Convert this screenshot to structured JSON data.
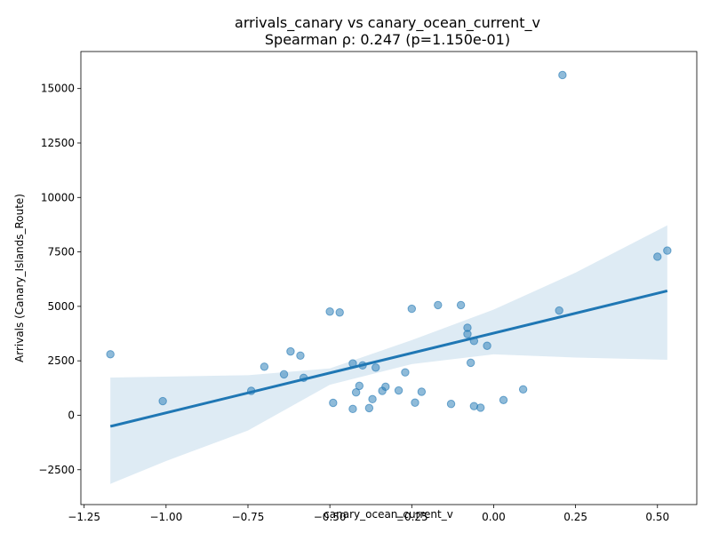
{
  "chart_data": {
    "type": "scatter",
    "title": "arrivals_canary vs canary_ocean_current_v",
    "subtitle": "Spearman ρ: 0.247 (p=1.150e-01)",
    "xlabel": "canary_ocean_current_v",
    "ylabel": "Arrivals (Canary_Islands_Route)",
    "xlim": [
      -1.26,
      0.62
    ],
    "ylim": [
      -4100,
      16700
    ],
    "xticks": [
      -1.25,
      -1.0,
      -0.75,
      -0.5,
      -0.25,
      0.0,
      0.25,
      0.5
    ],
    "xtick_labels": [
      "−1.25",
      "−1.00",
      "−0.75",
      "−0.50",
      "−0.25",
      "0.00",
      "0.25",
      "0.50"
    ],
    "yticks": [
      -2500,
      0,
      2500,
      5000,
      7500,
      10000,
      12500,
      15000
    ],
    "ytick_labels": [
      "−2500",
      "0",
      "2500",
      "5000",
      "7500",
      "10000",
      "12500",
      "15000"
    ],
    "grid": false,
    "colors": {
      "points": "#1f77b4",
      "line": "#1f77b4",
      "band": "#1f77b4"
    },
    "points": [
      {
        "x": -1.17,
        "y": 2800
      },
      {
        "x": -1.01,
        "y": 650
      },
      {
        "x": -0.74,
        "y": 1120
      },
      {
        "x": -0.7,
        "y": 2230
      },
      {
        "x": -0.64,
        "y": 1880
      },
      {
        "x": -0.62,
        "y": 2930
      },
      {
        "x": -0.59,
        "y": 2740
      },
      {
        "x": -0.58,
        "y": 1720
      },
      {
        "x": -0.5,
        "y": 4760
      },
      {
        "x": -0.49,
        "y": 570
      },
      {
        "x": -0.47,
        "y": 4720
      },
      {
        "x": -0.43,
        "y": 2380
      },
      {
        "x": -0.43,
        "y": 290
      },
      {
        "x": -0.42,
        "y": 1050
      },
      {
        "x": -0.41,
        "y": 1350
      },
      {
        "x": -0.4,
        "y": 2290
      },
      {
        "x": -0.38,
        "y": 330
      },
      {
        "x": -0.37,
        "y": 740
      },
      {
        "x": -0.36,
        "y": 2190
      },
      {
        "x": -0.34,
        "y": 1120
      },
      {
        "x": -0.33,
        "y": 1310
      },
      {
        "x": -0.29,
        "y": 1140
      },
      {
        "x": -0.27,
        "y": 1970
      },
      {
        "x": -0.25,
        "y": 4890
      },
      {
        "x": -0.24,
        "y": 580
      },
      {
        "x": -0.22,
        "y": 1080
      },
      {
        "x": -0.17,
        "y": 5060
      },
      {
        "x": -0.13,
        "y": 520
      },
      {
        "x": -0.1,
        "y": 5060
      },
      {
        "x": -0.08,
        "y": 4020
      },
      {
        "x": -0.08,
        "y": 3730
      },
      {
        "x": -0.07,
        "y": 2410
      },
      {
        "x": -0.06,
        "y": 420
      },
      {
        "x": -0.06,
        "y": 3410
      },
      {
        "x": -0.04,
        "y": 350
      },
      {
        "x": -0.02,
        "y": 3190
      },
      {
        "x": 0.03,
        "y": 700
      },
      {
        "x": 0.09,
        "y": 1190
      },
      {
        "x": 0.2,
        "y": 4810
      },
      {
        "x": 0.21,
        "y": 15620
      },
      {
        "x": 0.5,
        "y": 7280
      },
      {
        "x": 0.53,
        "y": 7560
      }
    ],
    "regression": {
      "x_start": -1.17,
      "y_start": -510,
      "x_end": 0.53,
      "y_end": 5710,
      "ci_upper": [
        [
          -1.17,
          1730
        ],
        [
          -0.75,
          1840
        ],
        [
          -0.5,
          2150
        ],
        [
          -0.25,
          3450
        ],
        [
          0.0,
          4850
        ],
        [
          0.25,
          6550
        ],
        [
          0.53,
          8720
        ]
      ],
      "ci_lower": [
        [
          -1.17,
          -3150
        ],
        [
          -1.0,
          -2100
        ],
        [
          -0.75,
          -700
        ],
        [
          -0.5,
          1400
        ],
        [
          -0.25,
          2350
        ],
        [
          0.0,
          2800
        ],
        [
          0.25,
          2650
        ],
        [
          0.53,
          2550
        ]
      ]
    }
  }
}
